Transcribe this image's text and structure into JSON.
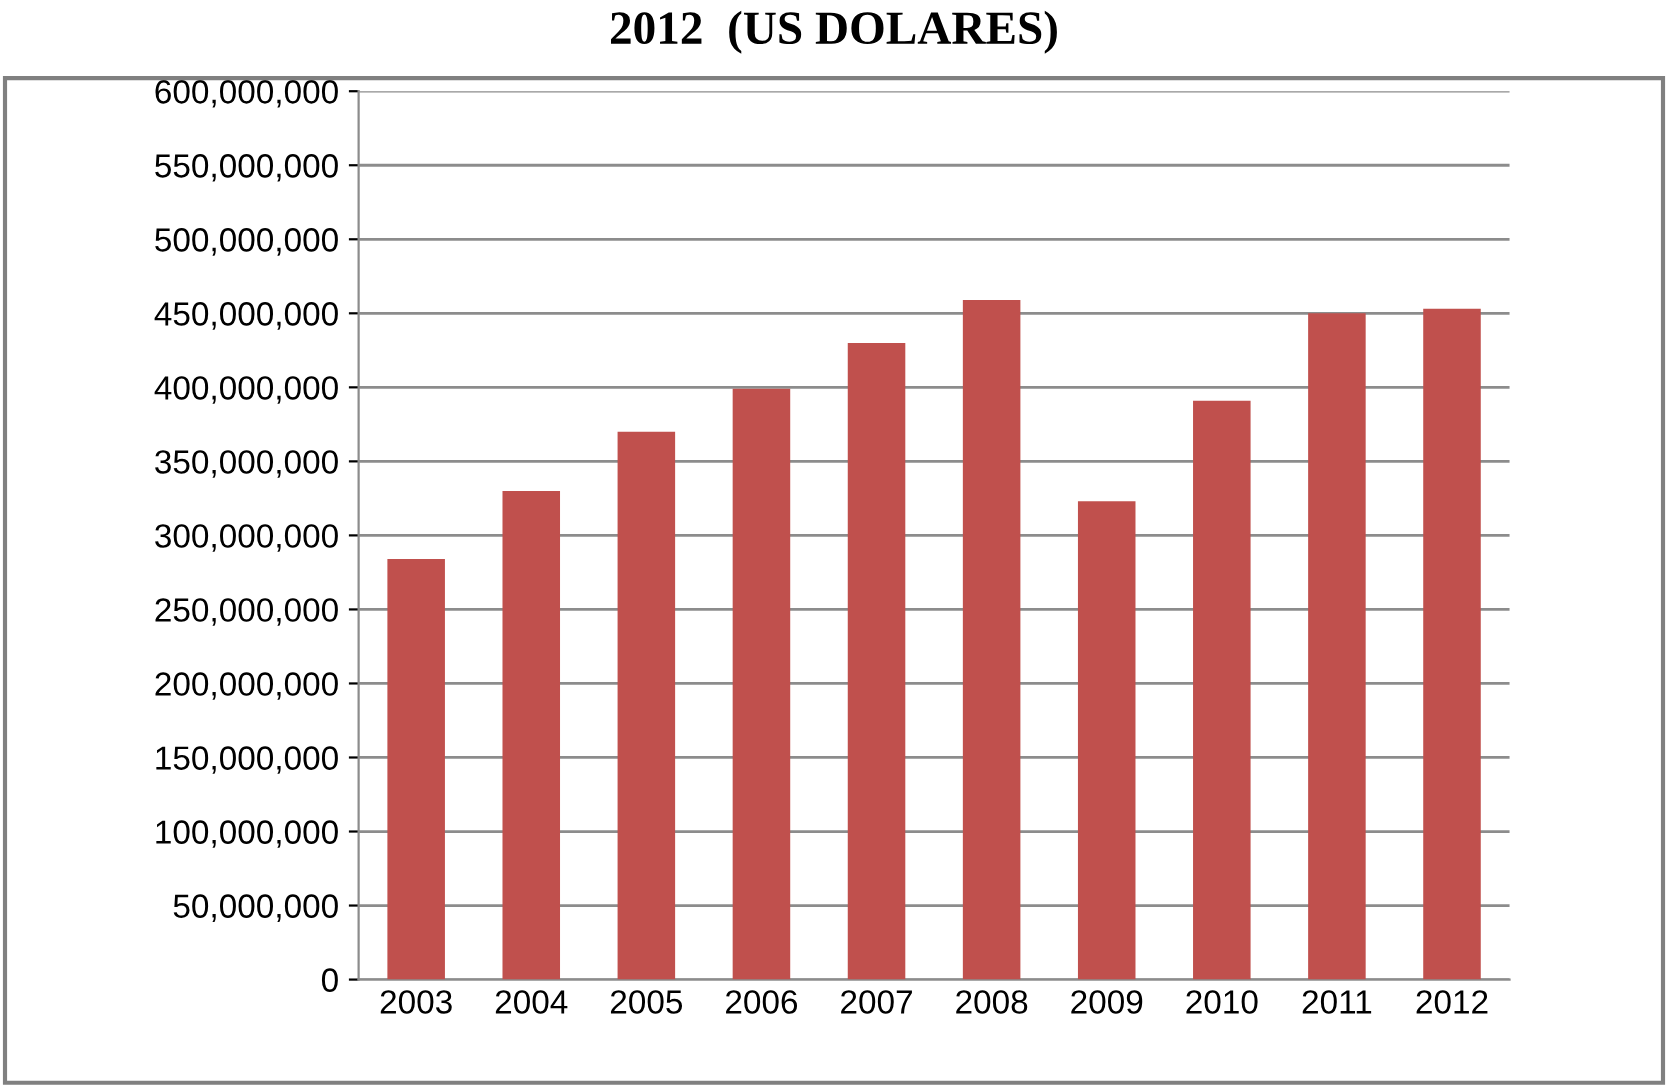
{
  "chart_data": {
    "type": "bar",
    "title": "2012  (US DOLARES)",
    "categories": [
      "2003",
      "2004",
      "2005",
      "2006",
      "2007",
      "2008",
      "2009",
      "2010",
      "2011",
      "2012"
    ],
    "values": [
      284000000,
      330000000,
      370000000,
      399000000,
      430000000,
      459000000,
      323000000,
      391000000,
      450000000,
      453000000
    ],
    "color": "#c0504d",
    "ylim": [
      0,
      600000000
    ],
    "yticks": [
      {
        "value": 0,
        "label": "0"
      },
      {
        "value": 50000000,
        "label": "50,000,000"
      },
      {
        "value": 100000000,
        "label": "100,000,000"
      },
      {
        "value": 150000000,
        "label": "150,000,000"
      },
      {
        "value": 200000000,
        "label": "200,000,000"
      },
      {
        "value": 250000000,
        "label": "250,000,000"
      },
      {
        "value": 300000000,
        "label": "300,000,000"
      },
      {
        "value": 350000000,
        "label": "350,000,000"
      },
      {
        "value": 400000000,
        "label": "400,000,000"
      },
      {
        "value": 450000000,
        "label": "450,000,000"
      },
      {
        "value": 500000000,
        "label": "500,000,000"
      },
      {
        "value": 550000000,
        "label": "550,000,000"
      },
      {
        "value": 600000000,
        "label": "600,000,000"
      }
    ],
    "grid": "y",
    "legend": false
  }
}
